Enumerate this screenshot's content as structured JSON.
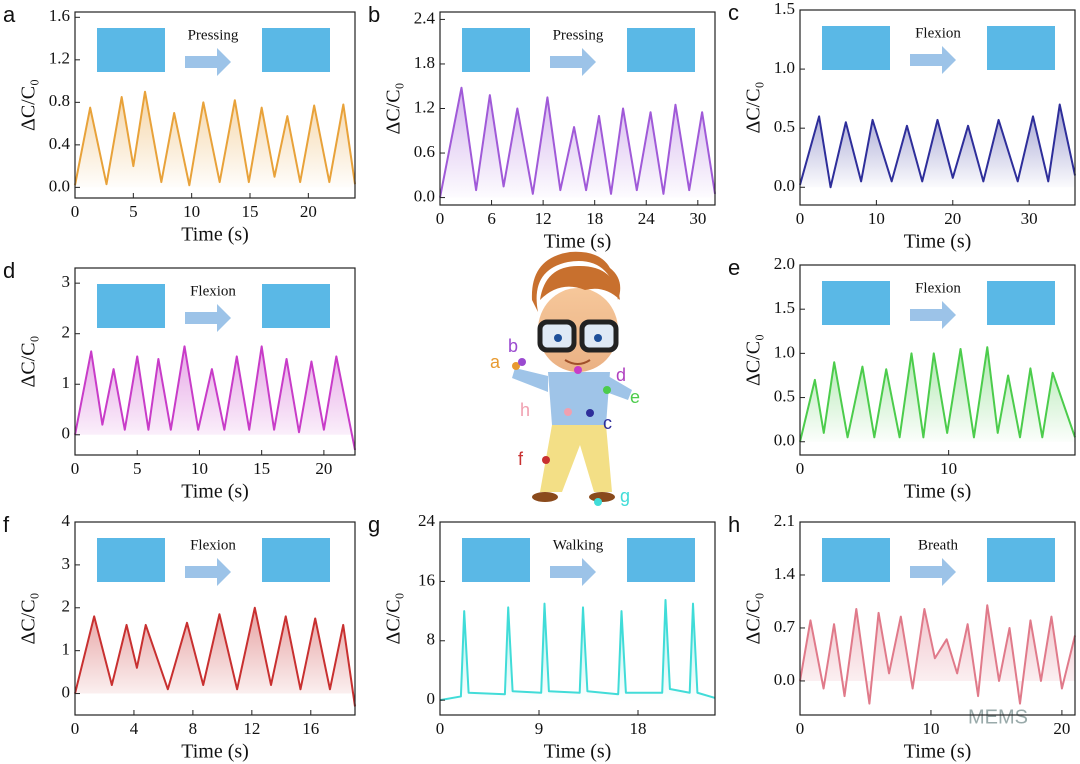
{
  "chart_data": [
    {
      "type": "area",
      "panel_label": "a",
      "annotation": "Pressing",
      "x_label": "Time (s)",
      "y_label": "ΔC/C₀",
      "color": "#e8a23a",
      "x": [
        0,
        1.3,
        2.7,
        4,
        5,
        6,
        7.4,
        8.5,
        9.8,
        11,
        12.4,
        13.7,
        14.9,
        16,
        17.1,
        18.2,
        19.3,
        20.5,
        21.8,
        23,
        24
      ],
      "values": [
        0.02,
        0.75,
        0.03,
        0.85,
        0.2,
        0.9,
        0.05,
        0.7,
        0.02,
        0.8,
        0.05,
        0.82,
        0.05,
        0.75,
        0.1,
        0.67,
        0.05,
        0.77,
        0.05,
        0.78,
        0.03
      ],
      "xlim": [
        0,
        24
      ],
      "xticks": [
        0,
        5,
        10,
        15,
        20
      ],
      "ylim": [
        -0.1,
        1.65
      ],
      "yticks": [
        {
          "value": 0,
          "label": "0.0"
        },
        0.4,
        0.8,
        1.2,
        1.6
      ]
    },
    {
      "type": "area",
      "panel_label": "b",
      "annotation": "Pressing",
      "x_label": "Time (s)",
      "y_label": "ΔC/C₀",
      "color": "#a05ad8",
      "x": [
        0,
        2.5,
        4.2,
        5.8,
        7.4,
        9,
        10.8,
        12.5,
        14,
        15.6,
        17,
        18.5,
        19.9,
        21.3,
        22.9,
        24.5,
        26,
        27.4,
        29,
        30.5,
        32
      ],
      "values": [
        0,
        1.48,
        0.1,
        1.38,
        0.15,
        1.2,
        0.05,
        1.35,
        0.1,
        0.95,
        0.1,
        1.1,
        0.05,
        1.2,
        0.1,
        1.15,
        0.05,
        1.25,
        0.1,
        1.15,
        0.05
      ],
      "xlim": [
        0,
        32
      ],
      "xticks": [
        0,
        6,
        12,
        18,
        24,
        30
      ],
      "ylim": [
        -0.1,
        2.5
      ],
      "yticks": [
        {
          "value": 0,
          "label": "0.0"
        },
        0.6,
        1.2,
        1.8,
        2.4
      ]
    },
    {
      "type": "area",
      "panel_label": "c",
      "annotation": "Flexion",
      "x_label": "Time (s)",
      "y_label": "ΔC/C₀",
      "color": "#2e2e9a",
      "x": [
        0,
        2.5,
        4,
        6,
        8,
        9.5,
        12,
        14,
        16,
        18,
        20,
        22,
        24,
        26,
        28.5,
        30.5,
        32.5,
        34,
        36
      ],
      "values": [
        0.02,
        0.6,
        0,
        0.55,
        0.05,
        0.57,
        0.05,
        0.52,
        0.05,
        0.57,
        0.08,
        0.52,
        0.05,
        0.57,
        0.05,
        0.6,
        0.05,
        0.7,
        0.1
      ],
      "xlim": [
        0,
        36
      ],
      "xticks": [
        0,
        10,
        20,
        30
      ],
      "ylim": [
        -0.15,
        1.5
      ],
      "yticks": [
        {
          "value": 0,
          "label": "0.0"
        },
        0.5,
        {
          "value": 1,
          "label": "1.0"
        },
        1.5
      ]
    },
    {
      "type": "area",
      "panel_label": "d",
      "annotation": "Flexion",
      "x_label": "Time (s)",
      "y_label": "ΔC/C₀",
      "color": "#c83cc8",
      "x": [
        0,
        1.3,
        2.2,
        3.1,
        4,
        5,
        5.9,
        6.7,
        7.7,
        8.8,
        9.9,
        11,
        12,
        13,
        14,
        15,
        16,
        17,
        18,
        19,
        20,
        21,
        22.5
      ],
      "values": [
        0,
        1.65,
        0.2,
        1.3,
        0.1,
        1.55,
        0.1,
        1.5,
        0.1,
        1.75,
        0.1,
        1.3,
        0.1,
        1.55,
        0.1,
        1.75,
        0.1,
        1.5,
        0.05,
        1.45,
        0.1,
        1.55,
        -0.3
      ],
      "xlim": [
        0,
        22.5
      ],
      "xticks": [
        0,
        5,
        10,
        15,
        20
      ],
      "ylim": [
        -0.4,
        3.3
      ],
      "yticks": [
        0,
        1,
        2,
        3
      ]
    },
    {
      "type": "area",
      "panel_label": "e",
      "annotation": "Flexion",
      "x_label": "Time (s)",
      "y_label": "ΔC/C₀",
      "color": "#4ccc4c",
      "x": [
        0,
        1,
        1.6,
        2.3,
        3.2,
        4.2,
        5,
        5.8,
        6.7,
        7.5,
        8.3,
        9,
        9.9,
        10.8,
        11.7,
        12.6,
        13.3,
        14,
        14.8,
        15.5,
        16.3,
        17,
        18.5
      ],
      "values": [
        0,
        0.7,
        0.1,
        0.9,
        0.05,
        0.85,
        0.05,
        0.82,
        0.05,
        1,
        0.05,
        1,
        0.1,
        1.05,
        0.05,
        1.07,
        0.1,
        0.75,
        0.05,
        0.83,
        0.05,
        0.78,
        0.05
      ],
      "xlim": [
        0,
        18.5
      ],
      "xticks": [
        0,
        10
      ],
      "ylim": [
        -0.15,
        2.0
      ],
      "yticks": [
        {
          "value": 0,
          "label": "0.0"
        },
        0.5,
        {
          "value": 1,
          "label": "1.0"
        },
        1.5,
        {
          "value": 2,
          "label": "2.0"
        }
      ]
    },
    {
      "type": "area",
      "panel_label": "f",
      "annotation": "Flexion",
      "x_label": "Time (s)",
      "y_label": "ΔC/C₀",
      "color": "#c83030",
      "x": [
        0,
        1.3,
        2.5,
        3.5,
        4.2,
        4.8,
        6.3,
        7.6,
        8.7,
        9.8,
        11,
        12.2,
        13.3,
        14.3,
        15.3,
        16.3,
        17.3,
        18.2,
        19
      ],
      "values": [
        0,
        1.8,
        0.2,
        1.6,
        0.6,
        1.6,
        0.1,
        1.65,
        0.2,
        1.85,
        0.1,
        2,
        0.2,
        1.8,
        0.1,
        1.75,
        0.1,
        1.6,
        -0.3
      ],
      "xlim": [
        0,
        19
      ],
      "xticks": [
        0,
        4,
        8,
        12,
        16
      ],
      "ylim": [
        -0.5,
        4
      ],
      "yticks": [
        0,
        1,
        2,
        3,
        4
      ]
    },
    {
      "type": "area",
      "panel_label": "g",
      "annotation": "Walking",
      "x_label": "Time (s)",
      "y_label": "ΔC/C₀",
      "color": "#40dcd8",
      "x": [
        0,
        1.9,
        2.2,
        2.6,
        5.9,
        6.2,
        6.6,
        9.2,
        9.5,
        9.9,
        12.7,
        13,
        13.4,
        16.2,
        16.5,
        16.9,
        20.2,
        20.5,
        20.9,
        22.7,
        23,
        23.4,
        25
      ],
      "values": [
        0,
        0.5,
        12,
        1,
        0.8,
        12.5,
        1.2,
        1,
        13,
        1.2,
        1,
        12.5,
        1.2,
        0.8,
        12,
        1,
        1,
        13.5,
        1.5,
        1,
        13,
        1,
        0.3
      ],
      "xlim": [
        0,
        25
      ],
      "xticks": [
        0,
        9,
        18
      ],
      "ylim": [
        -2,
        24
      ],
      "yticks": [
        0,
        8,
        16,
        24
      ]
    },
    {
      "type": "area",
      "panel_label": "h",
      "annotation": "Breath",
      "x_label": "Time (s)",
      "y_label": "ΔC/C₀",
      "color": "#e07a8a",
      "x": [
        0,
        0.8,
        1.8,
        2.6,
        3.4,
        4.3,
        5.3,
        6,
        6.8,
        7.7,
        8.6,
        9.5,
        10.3,
        11.2,
        12,
        12.8,
        13.6,
        14.3,
        15.2,
        16,
        16.8,
        17.6,
        18.4,
        19.2,
        20,
        21
      ],
      "values": [
        0,
        0.8,
        -0.1,
        0.75,
        -0.2,
        0.95,
        -0.3,
        0.9,
        0.1,
        0.85,
        -0.1,
        0.95,
        0.3,
        0.55,
        0.1,
        0.75,
        -0.2,
        1,
        0,
        0.7,
        -0.3,
        0.8,
        0,
        0.85,
        -0.1,
        0.6
      ],
      "xlim": [
        0,
        21
      ],
      "xticks": [
        0,
        10,
        20
      ],
      "ylim": [
        -0.45,
        2.1
      ],
      "yticks": [
        {
          "value": 0,
          "label": "0.0"
        },
        0.7,
        1.4,
        2.1
      ]
    }
  ],
  "cartoon": {
    "labels": [
      "a",
      "b",
      "c",
      "d",
      "e",
      "f",
      "g",
      "h"
    ]
  },
  "watermark": "MEMS"
}
